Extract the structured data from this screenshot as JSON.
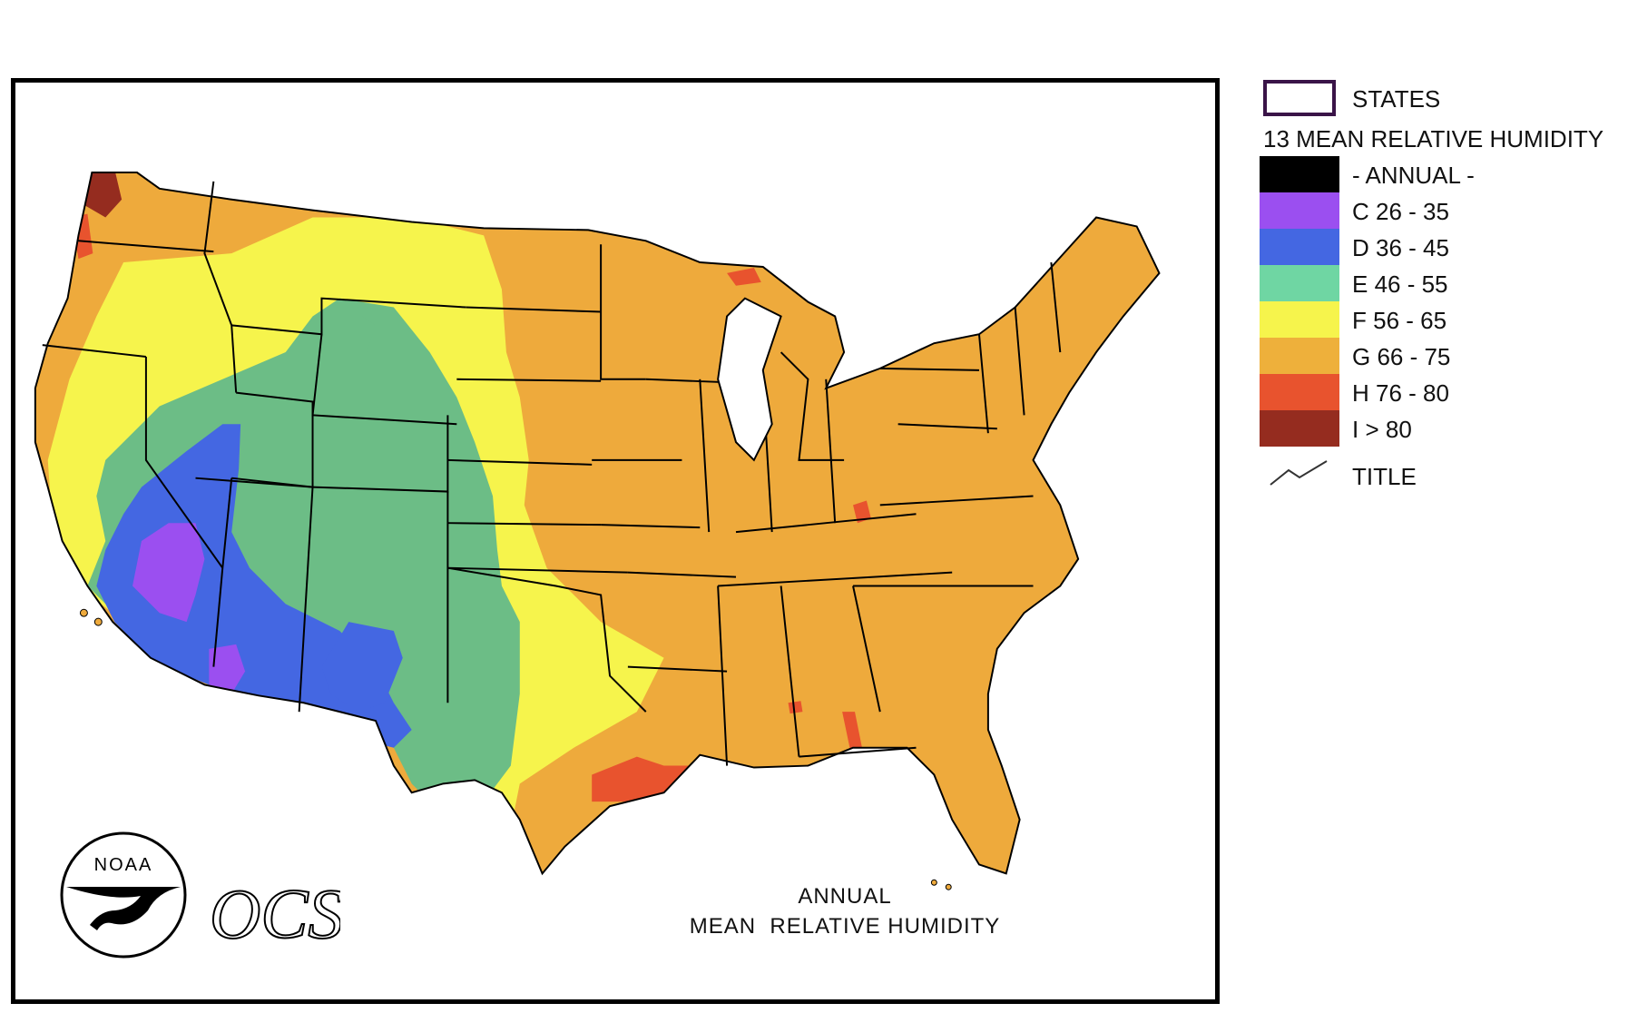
{
  "legend": {
    "states_label": "STATES",
    "layer_title": "13 MEAN RELATIVE HUMIDITY",
    "items": [
      {
        "label": "- ANNUAL -",
        "color": "#000000"
      },
      {
        "label": "C 26 - 35",
        "color": "#9b4ff0"
      },
      {
        "label": "D 36 - 45",
        "color": "#4467e2"
      },
      {
        "label": "E 46 - 55",
        "color": "#6fd6a3"
      },
      {
        "label": "F 56 - 65",
        "color": "#f6f44c"
      },
      {
        "label": "G 66 - 75",
        "color": "#eeb03b"
      },
      {
        "label": "H 76 - 80",
        "color": "#e8532e"
      },
      {
        "label": "I > 80",
        "color": "#952c1f"
      }
    ],
    "title_label": "TITLE"
  },
  "map": {
    "caption_line1": "ANNUAL",
    "caption_line2": "MEAN  RELATIVE HUMIDITY",
    "logo_text": "NOAA",
    "agency_text": "OCS",
    "colors": {
      "c_26_35": "#9b4ff0",
      "d_36_45": "#4467e2",
      "e_46_55": "#6cbd86",
      "f_56_65": "#f6f44c",
      "g_66_75": "#eeaa3c",
      "h_76_80": "#e8532e",
      "i_over_80": "#952c1f"
    }
  }
}
